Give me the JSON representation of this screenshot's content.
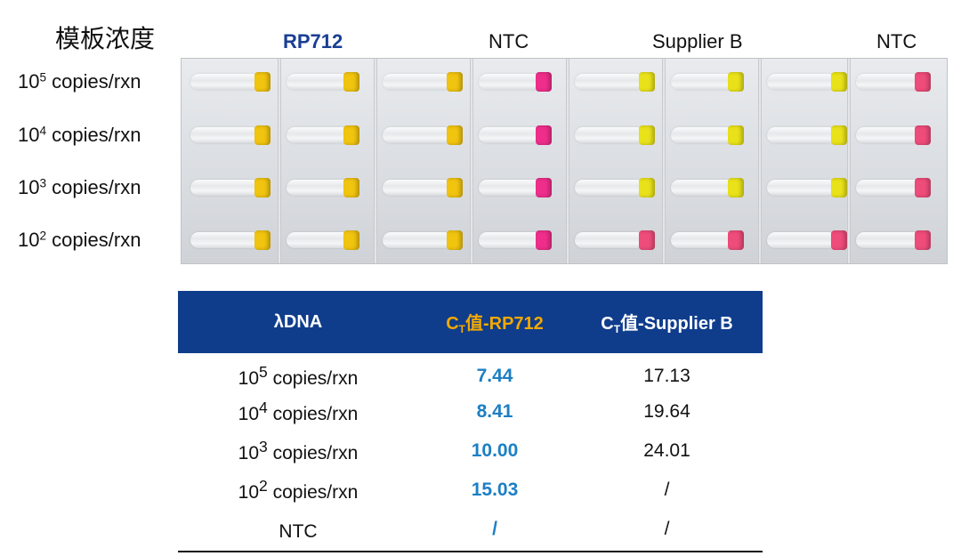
{
  "header": {
    "template_concentration": "模板浓度",
    "group_rp712": "RP712",
    "group_ntc_1": "NTC",
    "group_supplier_b": "Supplier B",
    "group_ntc_2": "NTC"
  },
  "row_labels": [
    {
      "exp": "5",
      "unit": " copies/rxn"
    },
    {
      "exp": "4",
      "unit": " copies/rxn"
    },
    {
      "exp": "3",
      "unit": " copies/rxn"
    },
    {
      "exp": "2",
      "unit": " copies/rxn"
    }
  ],
  "row_label_base": "10",
  "tube_cap_colors": {
    "rp712": [
      "#f1c40f",
      "#f1c40f",
      "#f1c40f",
      "#f1c40f"
    ],
    "ntc_rp712": [
      "#ee2e8a",
      "#ee2e8a",
      "#ee2e8a",
      "#ee2e8a"
    ],
    "supplier_b": [
      "#e9e21a",
      "#e9e21a",
      "#e9e21a",
      "#ee4c7a"
    ],
    "ntc_supplier_b": [
      "#ee4c7a",
      "#ee4c7a",
      "#ee4c7a",
      "#ee4c7a"
    ]
  },
  "table": {
    "headers": {
      "col1": "λDNA",
      "col2_prefix": "C",
      "col2_sub": "T",
      "col2_suffix": "值-RP712",
      "col3_prefix": "C",
      "col3_sub": "T",
      "col3_suffix": "值-Supplier B"
    },
    "rows": [
      {
        "base": "10",
        "exp": "5",
        "unit": " copies/rxn",
        "rp712": "7.44",
        "supplier_b": "17.13"
      },
      {
        "base": "10",
        "exp": "4",
        "unit": " copies/rxn",
        "rp712": "8.41",
        "supplier_b": "19.64"
      },
      {
        "base": "10",
        "exp": "3",
        "unit": " copies/rxn",
        "rp712": "10.00",
        "supplier_b": "24.01"
      },
      {
        "base": "10",
        "exp": "2",
        "unit": " copies/rxn",
        "rp712": "15.03",
        "supplier_b": "/"
      },
      {
        "base": "NTC",
        "exp": "",
        "unit": "",
        "rp712": "/",
        "supplier_b": "/"
      }
    ]
  },
  "colors": {
    "table_header_bg": "#0f3d8c",
    "highlight_header": "#f2a900",
    "rp712_value": "#1c7fc4",
    "rp712_label": "#1a3f93"
  }
}
